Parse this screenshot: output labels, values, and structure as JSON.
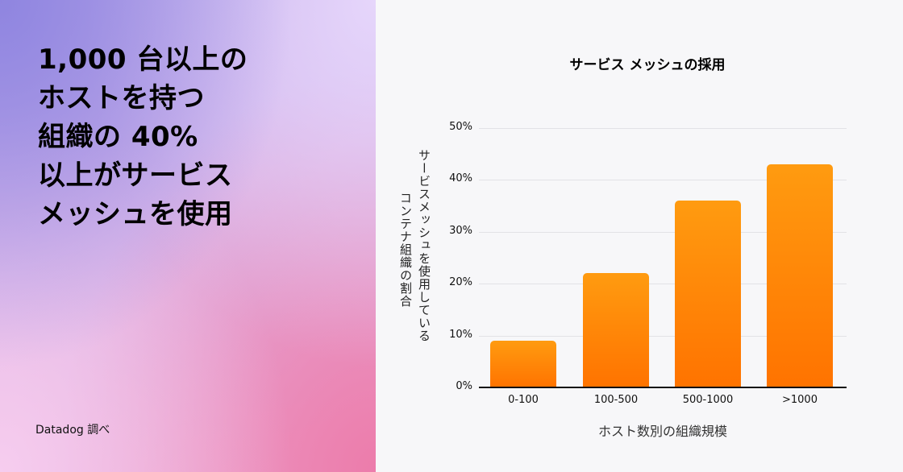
{
  "headline": {
    "lines": [
      "1,000 台以上の",
      "ホストを持つ",
      "組織の 40%",
      "以上がサービス",
      "メッシュを使用"
    ]
  },
  "source": "Datadog 調べ",
  "colors": {
    "bar_top": "#ff9b10",
    "bar_bottom": "#ff7300",
    "gridline": "#e2e2e6",
    "background": "#f7f7f9"
  },
  "chart_data": {
    "type": "bar",
    "title": "サービス メッシュの採用",
    "xlabel": "ホスト数別の組織規模",
    "ylabel": "サービスメッシュを使用しているコンテナ組織の割合",
    "ylabel_lines": [
      "サービスメッシュを使用している",
      "コンテナ組織の割合"
    ],
    "categories": [
      "0-100",
      "100-500",
      "500-1000",
      ">1000"
    ],
    "values": [
      9,
      22,
      36,
      43
    ],
    "unit": "%",
    "ylim": [
      0,
      50
    ],
    "yticks": [
      "0%",
      "10%",
      "20%",
      "30%",
      "40%",
      "50%"
    ],
    "grid": true,
    "legend": null
  }
}
